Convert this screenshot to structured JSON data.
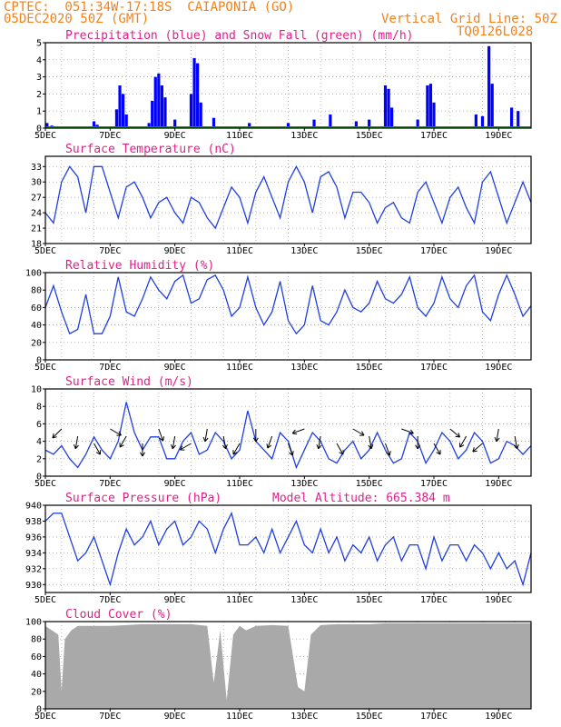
{
  "header": {
    "line1": "CPTEC:  051:34W-17:18S  CAIAPONIA (GO)",
    "line2": "05DEC2020 50Z (GMT)",
    "grid_note": "Vertical Grid Line: 50Z",
    "code": "TQ0126L028"
  },
  "colors": {
    "header": "#f0821e",
    "title": "#e0208a",
    "precip": "#0000ff",
    "snow": "#00a000",
    "line": "#1f3fe0",
    "cloud": "#a9a9a9"
  },
  "chart_data": [
    {
      "type": "bar",
      "title": "Precipitation (blue) and Snow Fall (green) (mm/h)",
      "x_ticks": [
        "5DEC",
        "7DEC",
        "9DEC",
        "11DEC",
        "13DEC",
        "15DEC",
        "17DEC",
        "19DEC"
      ],
      "ylim": [
        0,
        5
      ],
      "yticks": [
        0,
        1,
        2,
        3,
        4,
        5
      ],
      "series": [
        {
          "name": "Precipitation",
          "color": "blue",
          "points": [
            [
              5.05,
              0.3
            ],
            [
              5.2,
              0.15
            ],
            [
              6.5,
              0.4
            ],
            [
              6.6,
              0.2
            ],
            [
              7.2,
              1.1
            ],
            [
              7.3,
              2.5
            ],
            [
              7.4,
              2.0
            ],
            [
              7.5,
              0.8
            ],
            [
              8.2,
              0.3
            ],
            [
              8.3,
              1.6
            ],
            [
              8.4,
              3.0
            ],
            [
              8.5,
              3.2
            ],
            [
              8.6,
              2.5
            ],
            [
              8.7,
              1.8
            ],
            [
              9.0,
              0.5
            ],
            [
              9.5,
              2.0
            ],
            [
              9.6,
              4.1
            ],
            [
              9.7,
              3.8
            ],
            [
              9.8,
              1.5
            ],
            [
              10.2,
              0.6
            ],
            [
              11.3,
              0.3
            ],
            [
              12.5,
              0.3
            ],
            [
              13.3,
              0.5
            ],
            [
              13.8,
              0.8
            ],
            [
              14.6,
              0.4
            ],
            [
              15.0,
              0.5
            ],
            [
              15.5,
              2.5
            ],
            [
              15.6,
              2.3
            ],
            [
              15.7,
              1.2
            ],
            [
              16.5,
              0.5
            ],
            [
              16.8,
              2.5
            ],
            [
              16.9,
              2.6
            ],
            [
              17.0,
              1.5
            ],
            [
              18.3,
              0.8
            ],
            [
              18.5,
              0.7
            ],
            [
              18.7,
              4.8
            ],
            [
              18.8,
              2.6
            ],
            [
              19.4,
              1.2
            ],
            [
              19.6,
              1.0
            ]
          ]
        },
        {
          "name": "Snow Fall",
          "color": "green",
          "points": []
        }
      ]
    },
    {
      "type": "line",
      "title": "Surface Temperature (nC)",
      "x_ticks": [
        "5DEC",
        "7DEC",
        "9DEC",
        "11DEC",
        "13DEC",
        "15DEC",
        "17DEC",
        "19DEC"
      ],
      "ylim": [
        18,
        35
      ],
      "yticks": [
        18,
        21,
        24,
        27,
        30,
        33
      ],
      "x": [
        5,
        5.25,
        5.5,
        5.75,
        6,
        6.25,
        6.5,
        6.75,
        7,
        7.25,
        7.5,
        7.75,
        8,
        8.25,
        8.5,
        8.75,
        9,
        9.25,
        9.5,
        9.75,
        10,
        10.25,
        10.5,
        10.75,
        11,
        11.25,
        11.5,
        11.75,
        12,
        12.25,
        12.5,
        12.75,
        13,
        13.25,
        13.5,
        13.75,
        14,
        14.25,
        14.5,
        14.75,
        15,
        15.25,
        15.5,
        15.75,
        16,
        16.25,
        16.5,
        16.75,
        17,
        17.25,
        17.5,
        17.75,
        18,
        18.25,
        18.5,
        18.75,
        19,
        19.25,
        19.5,
        19.75,
        20
      ],
      "y": [
        24,
        22,
        30,
        33,
        31,
        24,
        33,
        33,
        28,
        23,
        29,
        30,
        27,
        23,
        26,
        27,
        24,
        22,
        27,
        26,
        23,
        21,
        25,
        29,
        27,
        22,
        28,
        31,
        27,
        23,
        30,
        33,
        30,
        24,
        31,
        32,
        29,
        23,
        28,
        28,
        26,
        22,
        25,
        26,
        23,
        22,
        28,
        30,
        26,
        22,
        27,
        29,
        25,
        22,
        30,
        32,
        27,
        22,
        26,
        30,
        26
      ]
    },
    {
      "type": "line",
      "title": "Relative Humidity (%)",
      "x_ticks": [
        "5DEC",
        "7DEC",
        "9DEC",
        "11DEC",
        "13DEC",
        "15DEC",
        "17DEC",
        "19DEC"
      ],
      "ylim": [
        0,
        100
      ],
      "yticks": [
        0,
        20,
        40,
        60,
        80,
        100
      ],
      "x": [
        5,
        5.25,
        5.5,
        5.75,
        6,
        6.25,
        6.5,
        6.75,
        7,
        7.25,
        7.5,
        7.75,
        8,
        8.25,
        8.5,
        8.75,
        9,
        9.25,
        9.5,
        9.75,
        10,
        10.25,
        10.5,
        10.75,
        11,
        11.25,
        11.5,
        11.75,
        12,
        12.25,
        12.5,
        12.75,
        13,
        13.25,
        13.5,
        13.75,
        14,
        14.25,
        14.5,
        14.75,
        15,
        15.25,
        15.5,
        15.75,
        16,
        16.25,
        16.5,
        16.75,
        17,
        17.25,
        17.5,
        17.75,
        18,
        18.25,
        18.5,
        18.75,
        19,
        19.25,
        19.5,
        19.75,
        20
      ],
      "y": [
        60,
        85,
        55,
        30,
        35,
        75,
        30,
        30,
        50,
        95,
        55,
        50,
        70,
        95,
        80,
        70,
        90,
        97,
        65,
        70,
        92,
        97,
        80,
        50,
        60,
        95,
        60,
        40,
        55,
        90,
        45,
        30,
        40,
        85,
        45,
        40,
        55,
        80,
        60,
        55,
        65,
        90,
        70,
        65,
        75,
        95,
        60,
        50,
        65,
        95,
        70,
        60,
        85,
        97,
        55,
        45,
        75,
        97,
        75,
        50,
        62
      ]
    },
    {
      "type": "line",
      "title": "Surface Wind (m/s)",
      "x_ticks": [
        "5DEC",
        "7DEC",
        "9DEC",
        "11DEC",
        "13DEC",
        "15DEC",
        "17DEC",
        "19DEC"
      ],
      "ylim": [
        0,
        10
      ],
      "yticks": [
        0,
        2,
        4,
        6,
        8,
        10
      ],
      "x": [
        5,
        5.25,
        5.5,
        5.75,
        6,
        6.25,
        6.5,
        6.75,
        7,
        7.25,
        7.5,
        7.75,
        8,
        8.25,
        8.5,
        8.75,
        9,
        9.25,
        9.5,
        9.75,
        10,
        10.25,
        10.5,
        10.75,
        11,
        11.25,
        11.5,
        11.75,
        12,
        12.25,
        12.5,
        12.75,
        13,
        13.25,
        13.5,
        13.75,
        14,
        14.25,
        14.5,
        14.75,
        15,
        15.25,
        15.5,
        15.75,
        16,
        16.25,
        16.5,
        16.75,
        17,
        17.25,
        17.5,
        17.75,
        18,
        18.25,
        18.5,
        18.75,
        19,
        19.25,
        19.5,
        19.75,
        20
      ],
      "y": [
        3,
        2.5,
        3.5,
        2,
        1,
        2.5,
        4.5,
        3,
        2,
        4,
        8.5,
        5,
        3,
        4.5,
        4.5,
        2,
        2,
        4,
        5,
        2.5,
        3,
        5,
        4,
        2,
        3,
        7.5,
        4,
        3,
        2,
        5,
        4,
        1,
        3,
        5,
        4,
        2,
        1.5,
        3,
        4,
        2,
        3,
        5,
        3,
        1.5,
        2,
        5,
        4,
        1.5,
        3,
        5,
        4,
        2,
        3,
        5,
        4,
        1.5,
        2,
        4,
        3.5,
        2.5,
        3.5
      ]
    },
    {
      "type": "line",
      "title": "Surface Pressure (hPa)",
      "annotation": "Model Altitude: 665.384 m",
      "x_ticks": [
        "5DEC",
        "7DEC",
        "9DEC",
        "11DEC",
        "13DEC",
        "15DEC",
        "17DEC",
        "19DEC"
      ],
      "ylim": [
        929,
        940
      ],
      "yticks": [
        930,
        932,
        934,
        936,
        938,
        940
      ],
      "x": [
        5,
        5.25,
        5.5,
        5.75,
        6,
        6.25,
        6.5,
        6.75,
        7,
        7.25,
        7.5,
        7.75,
        8,
        8.25,
        8.5,
        8.75,
        9,
        9.25,
        9.5,
        9.75,
        10,
        10.25,
        10.5,
        10.75,
        11,
        11.25,
        11.5,
        11.75,
        12,
        12.25,
        12.5,
        12.75,
        13,
        13.25,
        13.5,
        13.75,
        14,
        14.25,
        14.5,
        14.75,
        15,
        15.25,
        15.5,
        15.75,
        16,
        16.25,
        16.5,
        16.75,
        17,
        17.25,
        17.5,
        17.75,
        18,
        18.25,
        18.5,
        18.75,
        19,
        19.25,
        19.5,
        19.75,
        20
      ],
      "y": [
        938,
        939,
        939,
        936,
        933,
        934,
        936,
        933,
        930,
        934,
        937,
        935,
        936,
        938,
        935,
        937,
        938,
        935,
        936,
        938,
        937,
        934,
        937,
        939,
        935,
        935,
        936,
        934,
        937,
        934,
        936,
        938,
        935,
        934,
        937,
        934,
        936,
        933,
        935,
        934,
        936,
        933,
        935,
        936,
        933,
        935,
        935,
        932,
        936,
        933,
        935,
        935,
        933,
        935,
        934,
        932,
        934,
        932,
        933,
        930,
        934
      ]
    },
    {
      "type": "area",
      "title": "Cloud Cover (%)",
      "x_ticks": [
        "5DEC",
        "7DEC",
        "9DEC",
        "11DEC",
        "13DEC",
        "15DEC",
        "17DEC",
        "19DEC"
      ],
      "ylim": [
        0,
        100
      ],
      "yticks": [
        0,
        20,
        40,
        60,
        80,
        100
      ],
      "x": [
        5,
        5.2,
        5.4,
        5.5,
        5.6,
        5.8,
        6,
        6.5,
        7,
        7.5,
        8,
        8.5,
        9,
        9.5,
        10,
        10.2,
        10.4,
        10.6,
        10.8,
        11,
        11.2,
        11.5,
        12,
        12.5,
        12.8,
        13,
        13.2,
        13.5,
        14,
        14.5,
        15,
        15.5,
        16,
        16.5,
        17,
        17.5,
        18,
        18.5,
        19,
        19.5,
        20
      ],
      "y": [
        95,
        90,
        85,
        20,
        80,
        90,
        95,
        95,
        95,
        96,
        97,
        97,
        97,
        97,
        95,
        30,
        90,
        10,
        85,
        95,
        90,
        95,
        96,
        95,
        25,
        20,
        85,
        96,
        97,
        97,
        97,
        98,
        98,
        98,
        98,
        98,
        98,
        98,
        98,
        98,
        98
      ]
    }
  ]
}
